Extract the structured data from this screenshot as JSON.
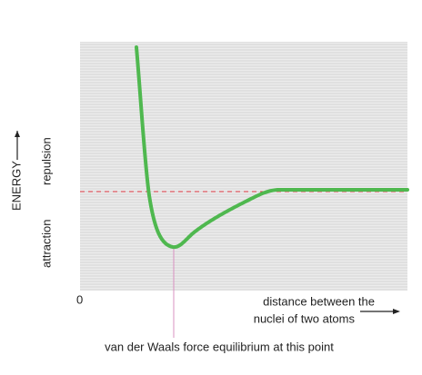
{
  "axes": {
    "energy_label": "ENERGY",
    "repulsion_label": "repulsion",
    "attraction_label": "attraction",
    "origin_label": "0",
    "distance_label": [
      "distance between the",
      "nuclei of two atoms"
    ]
  },
  "annotation": "van der Waals force equilibrium at this point"
}
